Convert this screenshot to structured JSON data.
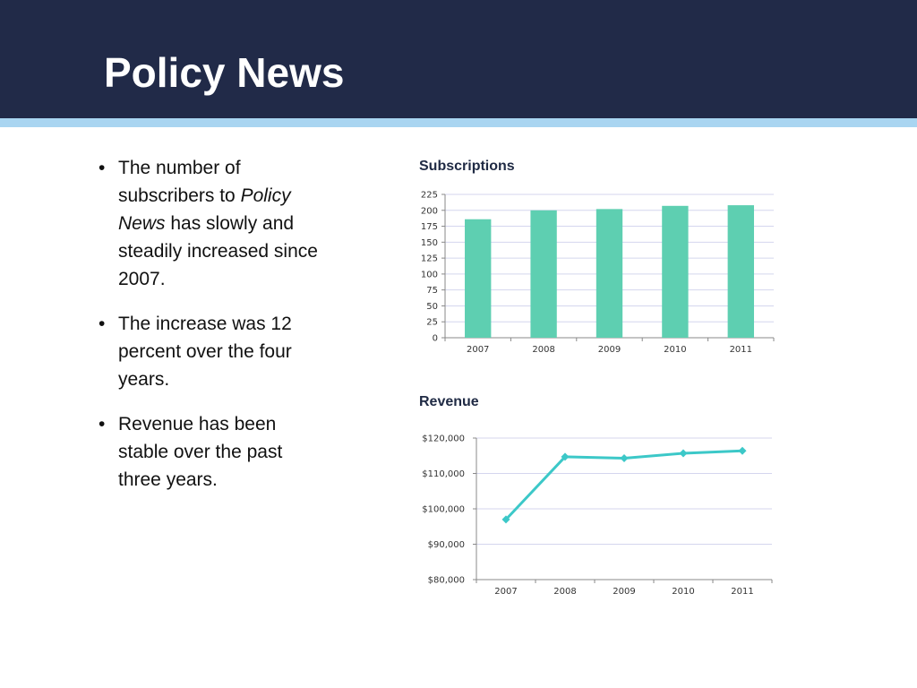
{
  "slide": {
    "title": "Policy News",
    "bullets": [
      {
        "pre": "The number of subscribers to ",
        "em": "Policy News",
        "post": " has slowly and steadily increased since 2007."
      },
      {
        "pre": "The increase was 12 percent over the four years.",
        "em": "",
        "post": ""
      },
      {
        "pre": "Revenue has been stable over the past three years.",
        "em": "",
        "post": ""
      }
    ]
  },
  "colors": {
    "header_bg": "#212a48",
    "header_stripe": "#a9d5f1",
    "bar_fill": "#5ecfb1",
    "line_stroke": "#3cc8c8",
    "title_text": "#1f2a44"
  },
  "chart_data": [
    {
      "type": "bar",
      "title": "Subscriptions",
      "categories": [
        "2007",
        "2008",
        "2009",
        "2010",
        "2011"
      ],
      "values": [
        186,
        200,
        202,
        207,
        208
      ],
      "ylim": [
        0,
        225
      ],
      "yticks": [
        0,
        25,
        50,
        75,
        100,
        125,
        150,
        175,
        200,
        225
      ],
      "ytick_labels": [
        "0",
        "25",
        "50",
        "75",
        "100",
        "125",
        "150",
        "175",
        "200",
        "225"
      ],
      "xlabel": "",
      "ylabel": "",
      "grid": true,
      "legend": "none"
    },
    {
      "type": "line",
      "title": "Revenue",
      "categories": [
        "2007",
        "2008",
        "2009",
        "2010",
        "2011"
      ],
      "values": [
        97000,
        114700,
        114300,
        115700,
        116400
      ],
      "ylim": [
        80000,
        120000
      ],
      "yticks": [
        80000,
        90000,
        100000,
        110000,
        120000
      ],
      "ytick_labels": [
        "$80,000",
        "$90,000",
        "$100,000",
        "$110,000",
        "$120,000"
      ],
      "xlabel": "",
      "ylabel": "",
      "grid": true,
      "legend": "none"
    }
  ]
}
